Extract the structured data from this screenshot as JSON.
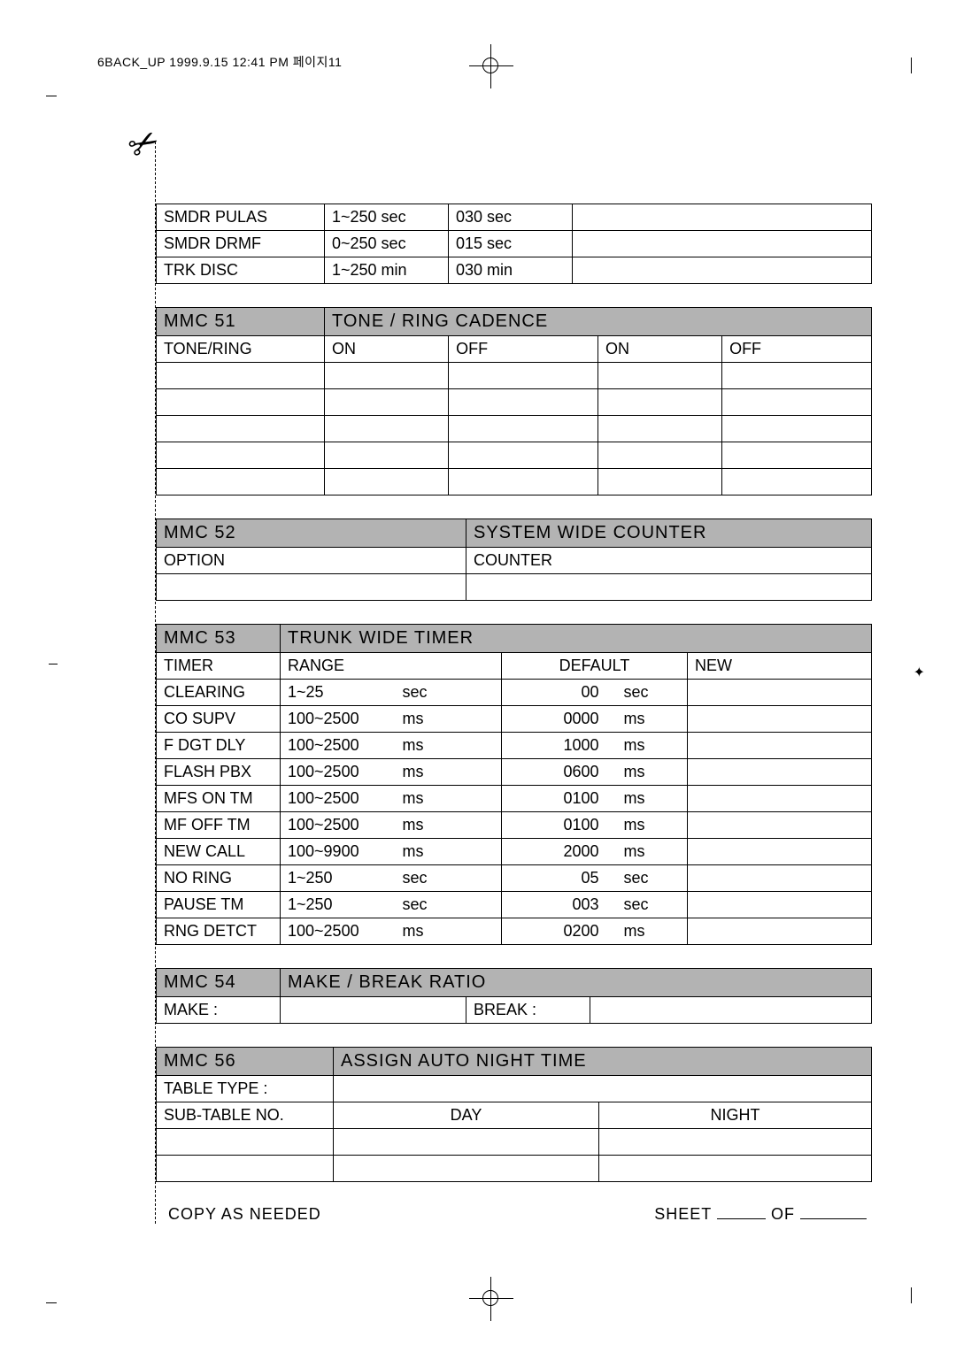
{
  "header": "6BACK_UP  1999.9.15 12:41 PM  페이지11",
  "topTable": {
    "rows": [
      [
        "SMDR PULAS",
        "1~250  sec",
        "030  sec",
        ""
      ],
      [
        "SMDR DRMF",
        "0~250  sec",
        "015  sec",
        ""
      ],
      [
        "TRK DISC",
        "1~250 min",
        "030 min",
        ""
      ]
    ]
  },
  "mmc51": {
    "code": "MMC 51",
    "title": "TONE / RING CADENCE",
    "headers": [
      "TONE/RING",
      "ON",
      "OFF",
      "ON",
      "OFF"
    ],
    "blankRows": 5
  },
  "mmc52": {
    "code": "MMC 52",
    "title": "SYSTEM WIDE COUNTER",
    "headers": [
      "OPTION",
      "COUNTER"
    ]
  },
  "mmc53": {
    "code": "MMC 53",
    "title": "TRUNK WIDE TIMER",
    "headers": [
      "TIMER",
      "RANGE",
      "DEFAULT",
      "NEW"
    ],
    "rows": [
      [
        "CLEARING",
        "1~25",
        "sec",
        "00",
        "sec",
        ""
      ],
      [
        "CO SUPV",
        "100~2500",
        "ms",
        "0000",
        "ms",
        ""
      ],
      [
        "F DGT DLY",
        "100~2500",
        "ms",
        "1000",
        "ms",
        ""
      ],
      [
        "FLASH PBX",
        "100~2500",
        "ms",
        "0600",
        "ms",
        ""
      ],
      [
        "MFS ON TM",
        "100~2500",
        "ms",
        "0100",
        "ms",
        ""
      ],
      [
        "MF OFF TM",
        "100~2500",
        "ms",
        "0100",
        "ms",
        ""
      ],
      [
        "NEW CALL",
        "100~9900",
        "ms",
        "2000",
        "ms",
        ""
      ],
      [
        "NO RING",
        "1~250",
        "sec",
        "05",
        "sec",
        ""
      ],
      [
        "PAUSE TM",
        "1~250",
        "sec",
        "003",
        "sec",
        ""
      ],
      [
        "RNG DETCT",
        "100~2500",
        "ms",
        "0200",
        "ms",
        ""
      ]
    ]
  },
  "mmc54": {
    "code": "MMC 54",
    "title": "MAKE / BREAK RATIO",
    "cells": [
      "MAKE  :",
      "",
      "BREAK  :",
      ""
    ]
  },
  "mmc56": {
    "code": "MMC 56",
    "title": "ASSIGN AUTO NIGHT TIME",
    "row1": [
      "TABLE TYPE  :",
      ""
    ],
    "row2": [
      "SUB-TABLE NO.",
      "DAY",
      "NIGHT"
    ]
  },
  "footer": {
    "left": "COPY AS NEEDED",
    "right1": "SHEET",
    "right2": "OF"
  }
}
